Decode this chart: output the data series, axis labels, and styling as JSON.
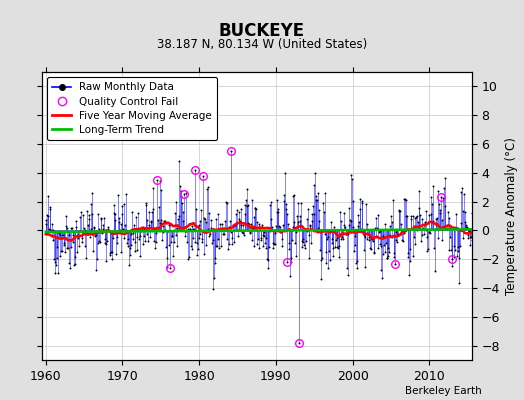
{
  "title": "BUCKEYE",
  "subtitle": "38.187 N, 80.134 W (United States)",
  "ylabel": "Temperature Anomaly (°C)",
  "watermark": "Berkeley Earth",
  "xlim": [
    1959.5,
    2015.5
  ],
  "ylim": [
    -9,
    11
  ],
  "yticks": [
    -8,
    -6,
    -4,
    -2,
    0,
    2,
    4,
    6,
    8,
    10
  ],
  "xticks": [
    1960,
    1970,
    1980,
    1990,
    2000,
    2010
  ],
  "raw_color": "#0000FF",
  "ma_color": "#FF0000",
  "trend_color": "#00BB00",
  "qc_color": "#FF00FF",
  "bg_color": "#E0E0E0",
  "plot_bg": "#FFFFFF",
  "seed": 42,
  "n_months": 672,
  "start_year": 1960,
  "qc_years": [
    1974.5,
    1976.2,
    1978.0,
    1979.5,
    1980.5,
    1984.2,
    1991.5,
    1993.0,
    2005.5,
    2011.5,
    2013.0
  ],
  "qc_values": [
    3.5,
    -2.6,
    2.5,
    4.2,
    3.8,
    5.5,
    -2.2,
    -7.8,
    -2.3,
    2.3,
    -2.0
  ]
}
